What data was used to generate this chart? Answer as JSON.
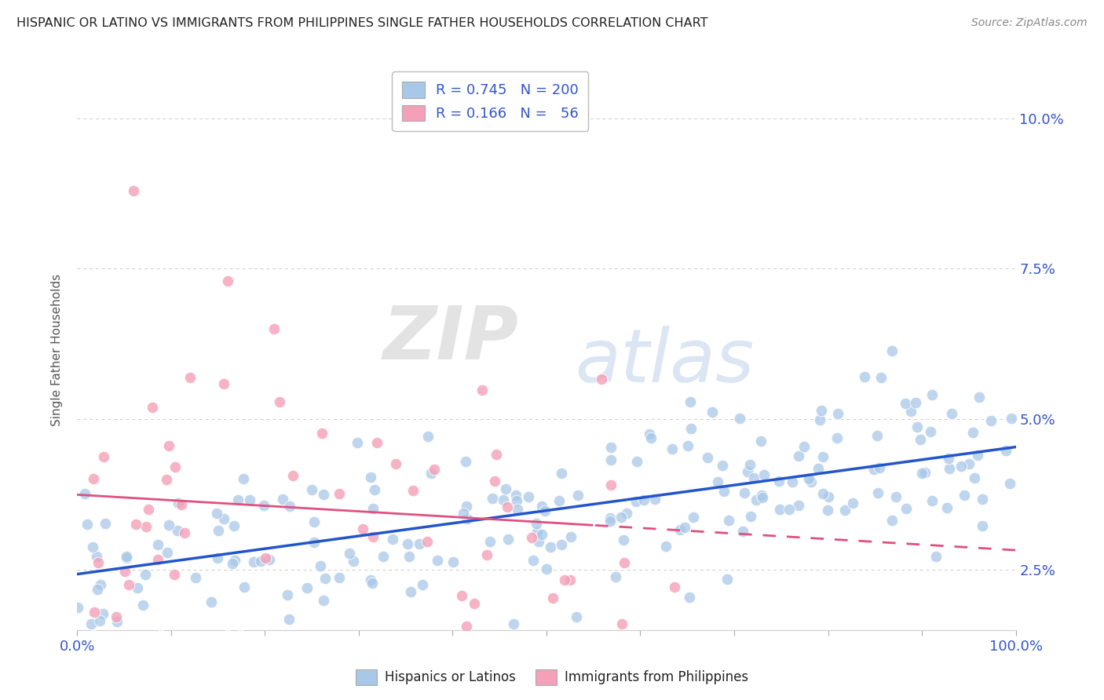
{
  "title": "HISPANIC OR LATINO VS IMMIGRANTS FROM PHILIPPINES SINGLE FATHER HOUSEHOLDS CORRELATION CHART",
  "source": "Source: ZipAtlas.com",
  "ylabel": "Single Father Households",
  "y_ticks": [
    0.025,
    0.05,
    0.075,
    0.1
  ],
  "y_tick_labels": [
    "2.5%",
    "5.0%",
    "7.5%",
    "10.0%"
  ],
  "xlim": [
    0.0,
    1.0
  ],
  "ylim": [
    0.015,
    0.108
  ],
  "legend_blue_r": "0.745",
  "legend_blue_n": "200",
  "legend_pink_r": "0.166",
  "legend_pink_n": "56",
  "blue_color": "#A8C8E8",
  "pink_color": "#F4A0B8",
  "blue_line_color": "#2255CC",
  "pink_line_color": "#E05080",
  "title_color": "#222222",
  "source_color": "#888888",
  "watermark_zip": "ZIP",
  "watermark_atlas": "atlas",
  "legend_label_blue": "Hispanics or Latinos",
  "legend_label_pink": "Immigrants from Philippines",
  "r_n_color": "#3355CC",
  "background_color": "#ffffff",
  "grid_color": "#cccccc",
  "blue_seed": 12345,
  "pink_seed": 67890
}
